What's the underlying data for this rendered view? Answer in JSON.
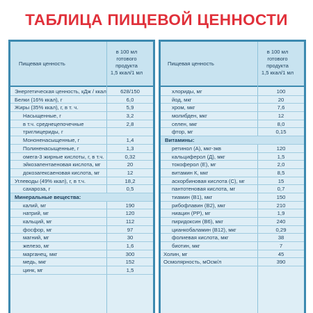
{
  "title": "ТАБЛИЦА ПИЩЕВОЙ ЦЕННОСТИ",
  "left": {
    "col1": "Пищевая ценность",
    "col2": "в 100 мл\nготового\nпродукта\n1,5 ккал/1 мл",
    "rows": [
      {
        "name": "Энергетическая ценность, кДж / ккал",
        "value": "628/150",
        "type": "row"
      },
      {
        "name": "Белки (16% ккал), г",
        "value": "6,0",
        "type": "row"
      },
      {
        "name": "Жиры (35% ккал), г, в т. ч.",
        "value": "5,9",
        "type": "row"
      },
      {
        "name": "Насыщенные, г",
        "value": "3,2",
        "type": "ind"
      },
      {
        "name": "в т.ч. среднецепочечные",
        "value": "2,8",
        "type": "ind"
      },
      {
        "name": "триглицериды, г",
        "value": "",
        "type": "ind"
      },
      {
        "name": "Мононенасыщенные, г",
        "value": "1,4",
        "type": "ind"
      },
      {
        "name": "Полиненасыщенные, г",
        "value": "1,3",
        "type": "ind"
      },
      {
        "name": "омега-3 жирные кислоты, г, в т.ч.",
        "value": "0,32",
        "type": "ind"
      },
      {
        "name": "эйкозапентаеновая кислота, мг",
        "value": "20",
        "type": "ind"
      },
      {
        "name": "докозагексаеновая кислота, мг",
        "value": "12",
        "type": "ind"
      },
      {
        "name": "Углеводы (49% ккал), г, в т.ч.",
        "value": "18,2",
        "type": "row"
      },
      {
        "name": "сахароза, г",
        "value": "0,5",
        "type": "ind"
      },
      {
        "name": "Минеральные вещества:",
        "value": "",
        "type": "sec"
      },
      {
        "name": "калий, мг",
        "value": "190",
        "type": "ind"
      },
      {
        "name": "натрий, мг",
        "value": "120",
        "type": "ind"
      },
      {
        "name": "кальций, мг",
        "value": "112",
        "type": "ind"
      },
      {
        "name": "фосфор, мг",
        "value": "97",
        "type": "ind"
      },
      {
        "name": "магний, мг",
        "value": "30",
        "type": "ind"
      },
      {
        "name": "железо, мг",
        "value": "1,6",
        "type": "ind"
      },
      {
        "name": "марганец, мкг",
        "value": "300",
        "type": "ind"
      },
      {
        "name": "медь, мкг",
        "value": "152",
        "type": "ind"
      },
      {
        "name": "цинк, мг",
        "value": "1,5",
        "type": "ind"
      }
    ]
  },
  "right": {
    "col1": "Пищевая ценность",
    "col2": "в 100 мл\nготового\nпродукта\n1,5 ккал/1 мл",
    "rows": [
      {
        "name": "хлориды, мг",
        "value": "100",
        "type": "ind"
      },
      {
        "name": "йод, мкг",
        "value": "20",
        "type": "ind"
      },
      {
        "name": "хром, мкг",
        "value": "7,6",
        "type": "ind"
      },
      {
        "name": "молибден, мкг",
        "value": "12",
        "type": "ind"
      },
      {
        "name": "селен, мкг",
        "value": "8,0",
        "type": "ind"
      },
      {
        "name": "фтор, мг",
        "value": "0,15",
        "type": "ind"
      },
      {
        "name": "Витамины:",
        "value": "",
        "type": "sec"
      },
      {
        "name": "ретинол (А), мкг-экв",
        "value": "120",
        "type": "ind"
      },
      {
        "name": "кальциферол (Д), мкг",
        "value": "1,5",
        "type": "ind"
      },
      {
        "name": "токоферол (Е), мг",
        "value": "2,0",
        "type": "ind"
      },
      {
        "name": "витамин К, мкг",
        "value": "8,5",
        "type": "ind"
      },
      {
        "name": "аскорбиновая кислота (С), мг",
        "value": "15",
        "type": "ind"
      },
      {
        "name": "пантотеновая кислота, мг",
        "value": "0,7",
        "type": "ind"
      },
      {
        "name": "тиамин (В1), мкг",
        "value": "150",
        "type": "ind"
      },
      {
        "name": "рибофлавин (В2), мкг",
        "value": "210",
        "type": "ind"
      },
      {
        "name": "ниацин (РР), мг",
        "value": "1,9",
        "type": "ind"
      },
      {
        "name": "пиридоксин (В6), мкг",
        "value": "240",
        "type": "ind"
      },
      {
        "name": "цианкобаламин (В12), мкг",
        "value": "0,29",
        "type": "ind"
      },
      {
        "name": "фолиевая кислота, мкг",
        "value": "38",
        "type": "ind"
      },
      {
        "name": "биотин, мкг",
        "value": "7",
        "type": "ind"
      },
      {
        "name": "Холин, мг",
        "value": "45",
        "type": "row"
      },
      {
        "name": "Осмолярность, мОсм/л",
        "value": "390",
        "type": "row"
      }
    ]
  }
}
